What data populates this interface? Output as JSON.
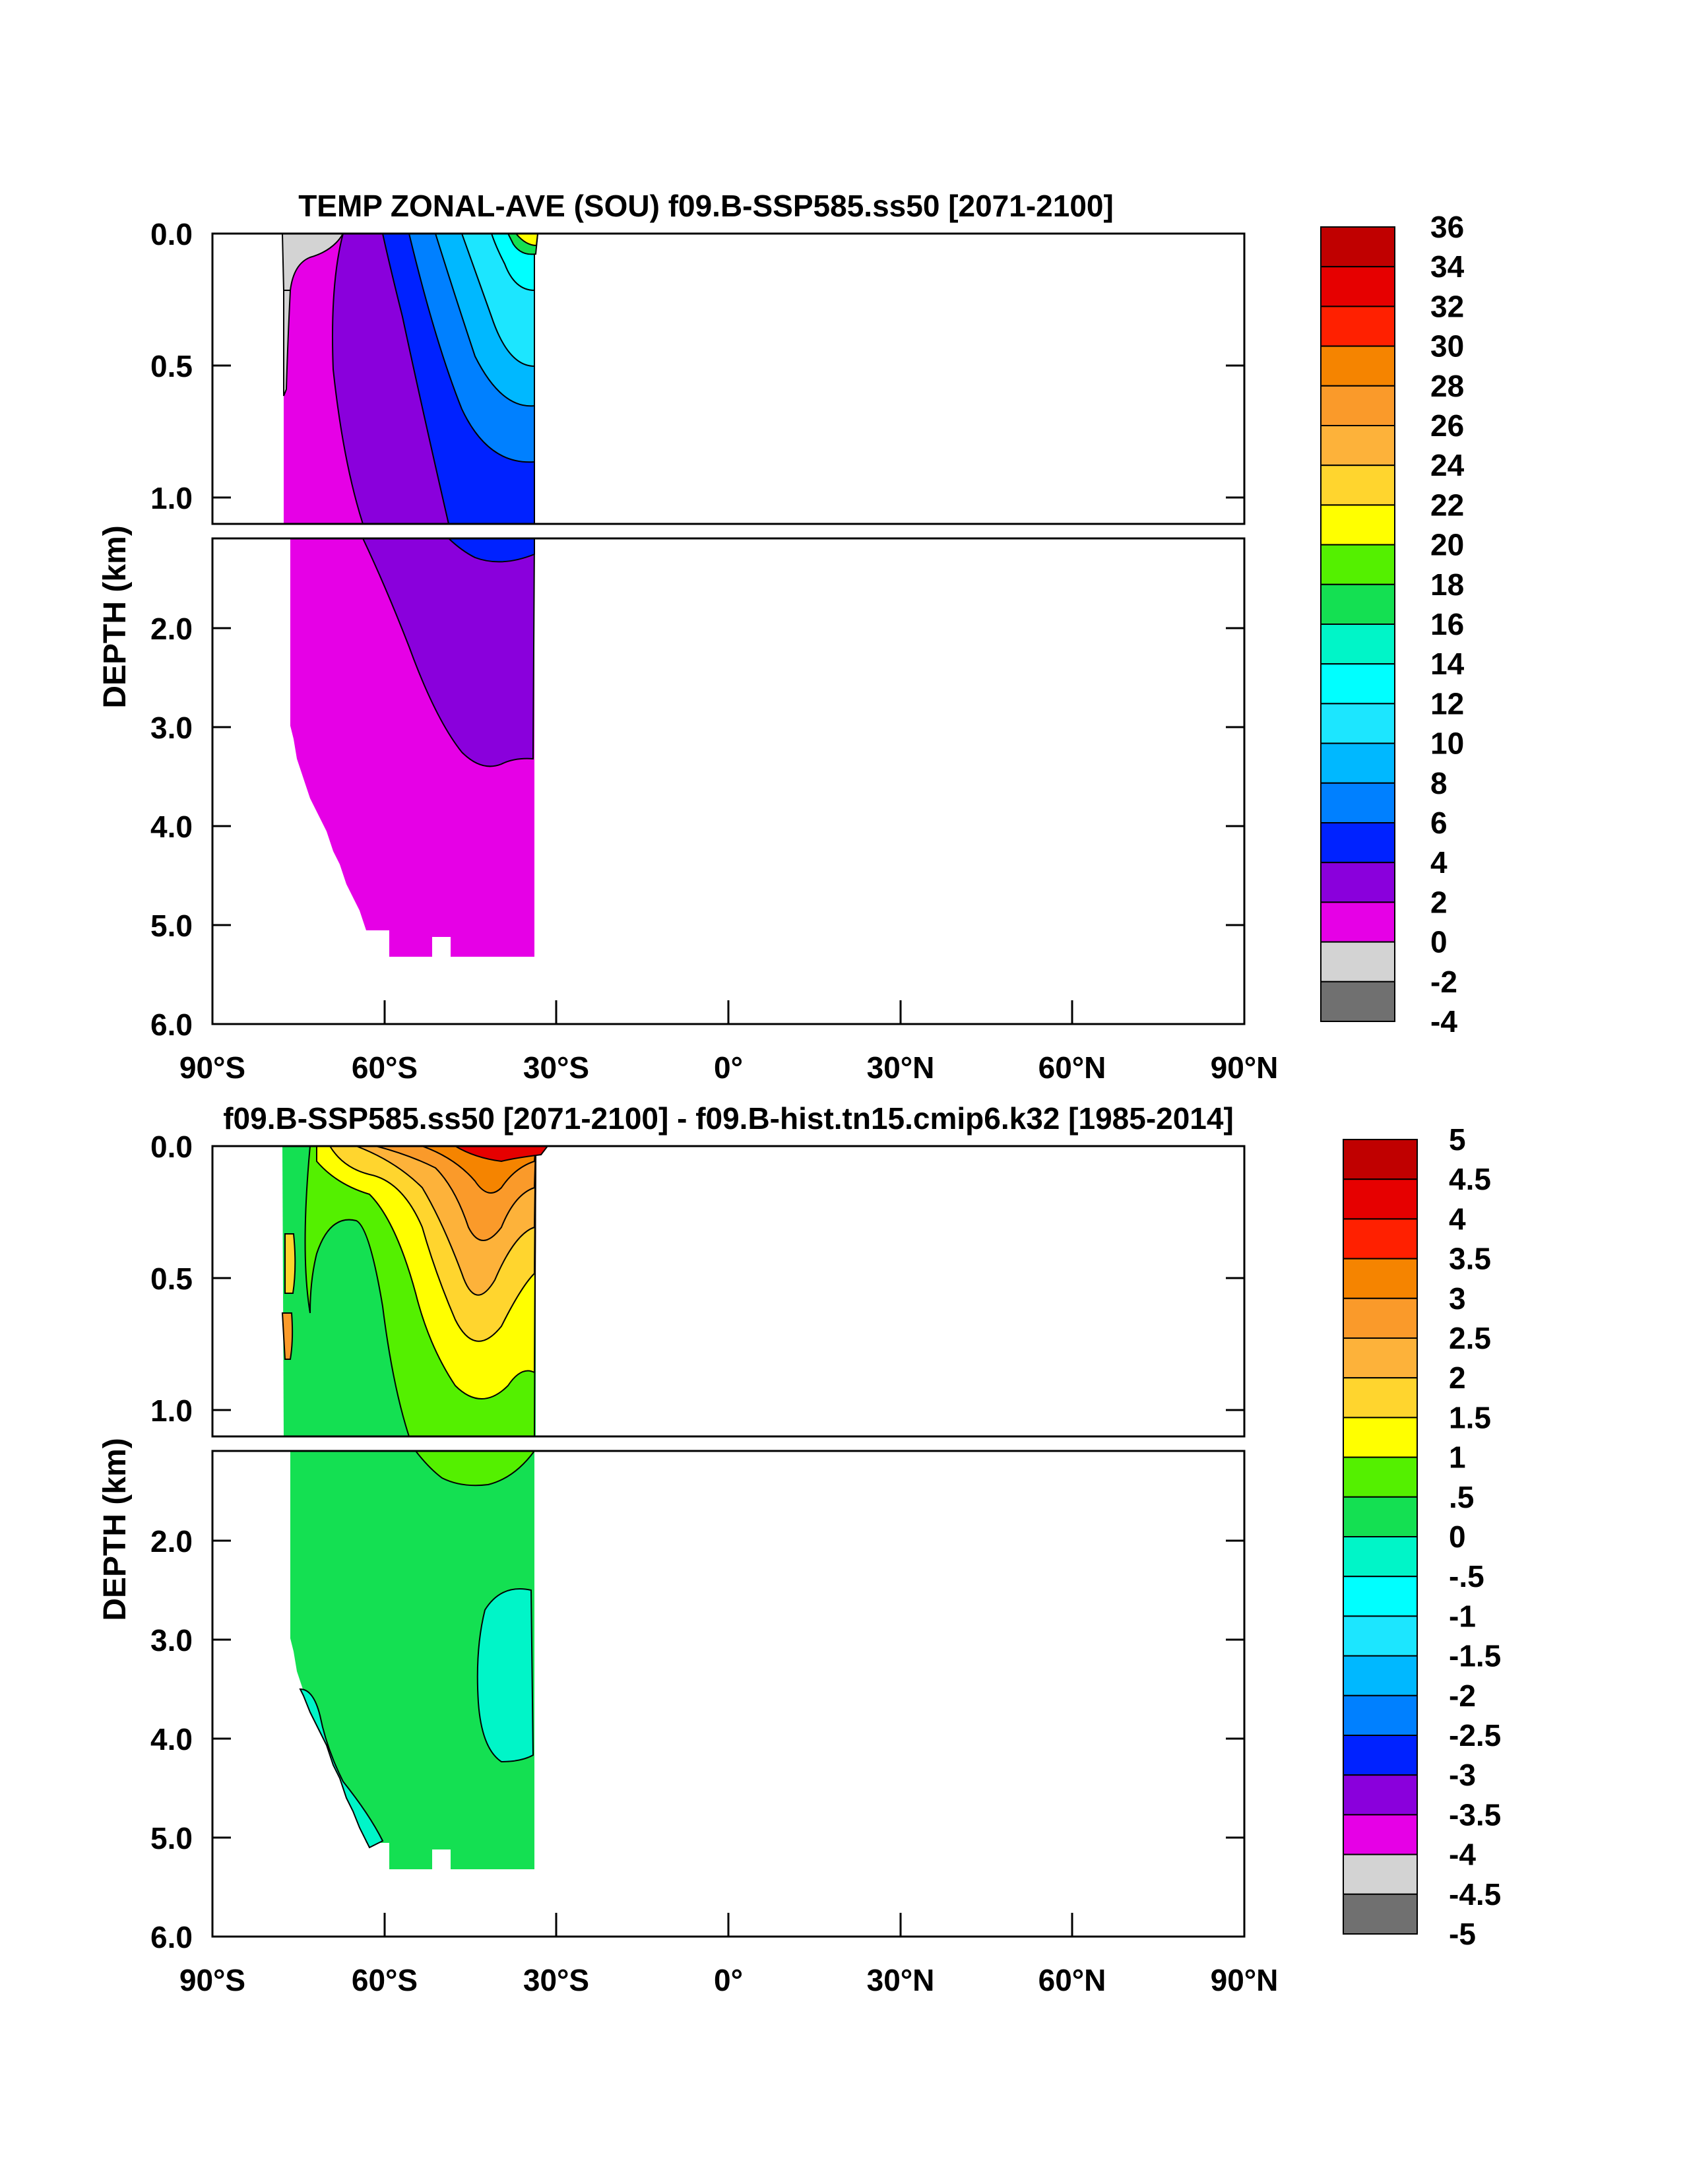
{
  "chart_data": [
    {
      "type": "heatmap",
      "title": "TEMP ZONAL-AVE (SOU) f09.B-SSP585.ss50 [2071-2100]",
      "ylabel": "DEPTH (km)",
      "xlabel": "",
      "x_ticks": [
        "90°S",
        "60°S",
        "30°S",
        "0°",
        "30°N",
        "60°N",
        "90°N"
      ],
      "x_range": [
        -90,
        90
      ],
      "y_upper_ticks": [
        "0.0",
        "0.5",
        "1.0"
      ],
      "y_lower_ticks": [
        "2.0",
        "3.0",
        "4.0",
        "5.0",
        "6.0"
      ],
      "y_range_upper": [
        0.0,
        1.1
      ],
      "y_range_lower": [
        1.2,
        6.0
      ],
      "colorbar_labels": [
        "36",
        "34",
        "32",
        "30",
        "28",
        "26",
        "24",
        "22",
        "20",
        "18",
        "16",
        "14",
        "12",
        "10",
        "8",
        "6",
        "4",
        "2",
        "0",
        "-2",
        "-4"
      ],
      "colorbar_colors": [
        "#c00000",
        "#e60000",
        "#ff2000",
        "#f58400",
        "#fa9a2a",
        "#fdb23a",
        "#ffd52e",
        "#ffff00",
        "#54f000",
        "#14e052",
        "#00f5c8",
        "#00ffff",
        "#1ce6ff",
        "#00b8ff",
        "#0080ff",
        "#0022ff",
        "#8a00dc",
        "#e600e6",
        "#d3d3d3",
        "#707070"
      ],
      "field_regions": [
        {
          "level": "2",
          "lat": [
            -78,
            -34
          ],
          "depth": [
            0.0,
            5.4
          ]
        },
        {
          "level": "4",
          "lat": [
            -66,
            -34
          ],
          "depth": [
            0.0,
            3.4
          ]
        },
        {
          "level": "6",
          "lat": [
            -58,
            -34
          ],
          "depth": [
            0.0,
            1.3
          ]
        },
        {
          "level": "8",
          "lat": [
            -50,
            -34
          ],
          "depth": [
            0.0,
            0.6
          ]
        },
        {
          "level": "10",
          "lat": [
            -46,
            -34
          ],
          "depth": [
            0.0,
            0.35
          ]
        },
        {
          "level": "16",
          "lat": [
            -38,
            -33
          ],
          "depth": [
            0.0,
            0.05
          ]
        },
        {
          "level": "0",
          "lat": [
            -80,
            -70
          ],
          "depth": [
            0.0,
            0.6
          ]
        }
      ]
    },
    {
      "type": "heatmap",
      "title": "f09.B-SSP585.ss50 [2071-2100] - f09.B-hist.tn15.cmip6.k32 [1985-2014]",
      "ylabel": "DEPTH (km)",
      "xlabel": "",
      "x_ticks": [
        "90°S",
        "60°S",
        "30°S",
        "0°",
        "30°N",
        "60°N",
        "90°N"
      ],
      "x_range": [
        -90,
        90
      ],
      "y_upper_ticks": [
        "0.0",
        "0.5",
        "1.0"
      ],
      "y_lower_ticks": [
        "2.0",
        "3.0",
        "4.0",
        "5.0",
        "6.0"
      ],
      "y_range_upper": [
        0.0,
        1.1
      ],
      "y_range_lower": [
        1.2,
        6.0
      ],
      "colorbar_labels": [
        "5",
        "4.5",
        "4",
        "3.5",
        "3",
        "2.5",
        "2",
        "1.5",
        "1",
        ".5",
        "0",
        "-.5",
        "-1",
        "-1.5",
        "-2",
        "-2.5",
        "-3",
        "-3.5",
        "-4",
        "-4.5",
        "-5"
      ],
      "colorbar_colors": [
        "#c00000",
        "#e60000",
        "#ff2000",
        "#f58400",
        "#fa9a2a",
        "#fdb23a",
        "#ffd52e",
        "#ffff00",
        "#54f000",
        "#14e052",
        "#00f5c8",
        "#00ffff",
        "#1ce6ff",
        "#00b8ff",
        "#0080ff",
        "#0022ff",
        "#8a00dc",
        "#e600e6",
        "#d3d3d3",
        "#707070"
      ],
      "field_regions": [
        {
          "level": ".5",
          "lat": [
            -78,
            -34
          ],
          "depth": [
            0.0,
            5.4
          ]
        },
        {
          "level": "1",
          "lat": [
            -60,
            -34
          ],
          "depth": [
            0.0,
            1.5
          ]
        },
        {
          "level": "1.5",
          "lat": [
            -56,
            -34
          ],
          "depth": [
            0.0,
            0.95
          ]
        },
        {
          "level": "2",
          "lat": [
            -52,
            -34
          ],
          "depth": [
            0.0,
            0.5
          ]
        },
        {
          "level": "2.5",
          "lat": [
            -50,
            -34
          ],
          "depth": [
            0.0,
            0.4
          ]
        },
        {
          "level": "3",
          "lat": [
            -46,
            -34
          ],
          "depth": [
            0.0,
            0.15
          ]
        },
        {
          "level": "4",
          "lat": [
            -44,
            -34
          ],
          "depth": [
            0.0,
            0.03
          ]
        },
        {
          "level": "0",
          "lat": [
            -42,
            -35
          ],
          "depth": [
            2.6,
            4.0
          ]
        },
        {
          "level": "0",
          "lat": [
            -76,
            -65
          ],
          "depth": [
            3.3,
            5.1
          ]
        }
      ]
    }
  ]
}
